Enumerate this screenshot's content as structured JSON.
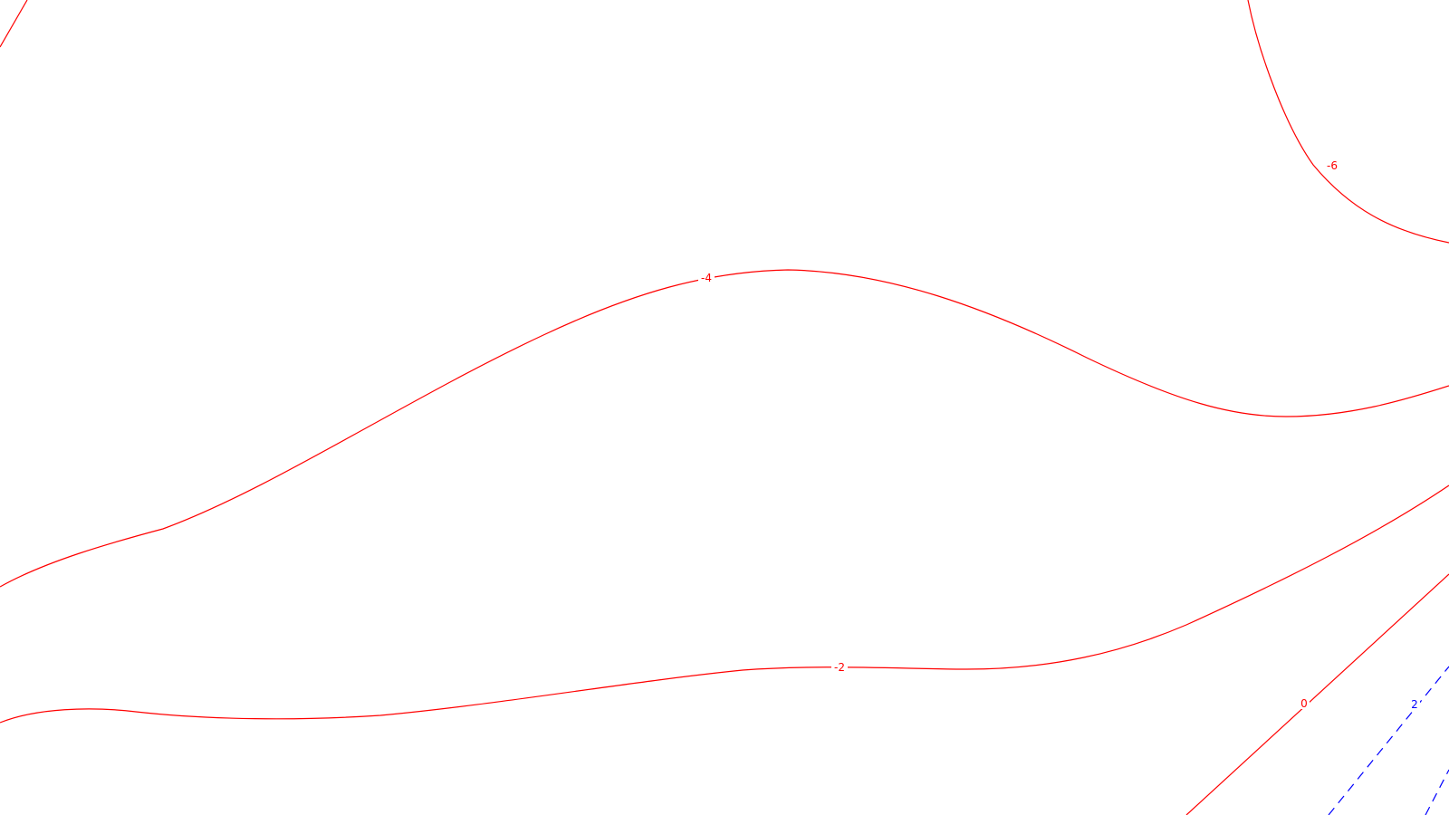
{
  "chart_data": {
    "type": "contour",
    "title": "",
    "xlabel": "",
    "ylabel": "",
    "grid": false,
    "legend": "none",
    "line_style": {
      "negative_and_zero": {
        "color": "#ff0000",
        "dash": "solid"
      },
      "positive": {
        "color": "#0000ff",
        "dash": "dashed"
      }
    },
    "levels": [
      {
        "value": -6,
        "label": "-6",
        "color": "#ff0000",
        "dashed": false
      },
      {
        "value": -4,
        "label": "-4",
        "color": "#ff0000",
        "dashed": false
      },
      {
        "value": -2,
        "label": "-2",
        "color": "#ff0000",
        "dashed": false
      },
      {
        "value": 0,
        "label": "0",
        "color": "#ff0000",
        "dashed": false
      },
      {
        "value": 2,
        "label": "2",
        "color": "#0000ff",
        "dashed": true
      }
    ]
  }
}
